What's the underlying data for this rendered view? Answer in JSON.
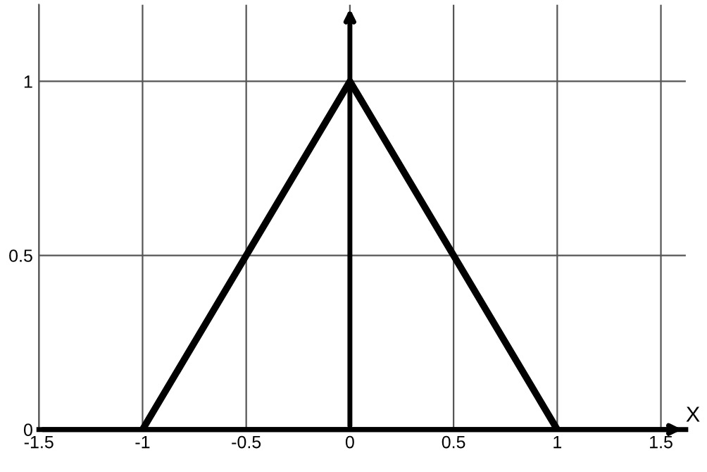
{
  "chart_data": {
    "type": "line",
    "xlabel": "X",
    "x": [
      -1,
      0,
      1
    ],
    "series": [
      {
        "color": "#000000",
        "values": [
          0,
          1,
          0
        ]
      }
    ],
    "xlim": [
      -1.5,
      1.62
    ],
    "ylim": [
      0,
      1.22
    ],
    "xticks": [
      -1.5,
      -1,
      -0.5,
      0,
      0.5,
      1,
      1.5
    ],
    "yticks": [
      0,
      0.5,
      1
    ],
    "grid": true,
    "marker": "none",
    "line_style": "solid"
  }
}
